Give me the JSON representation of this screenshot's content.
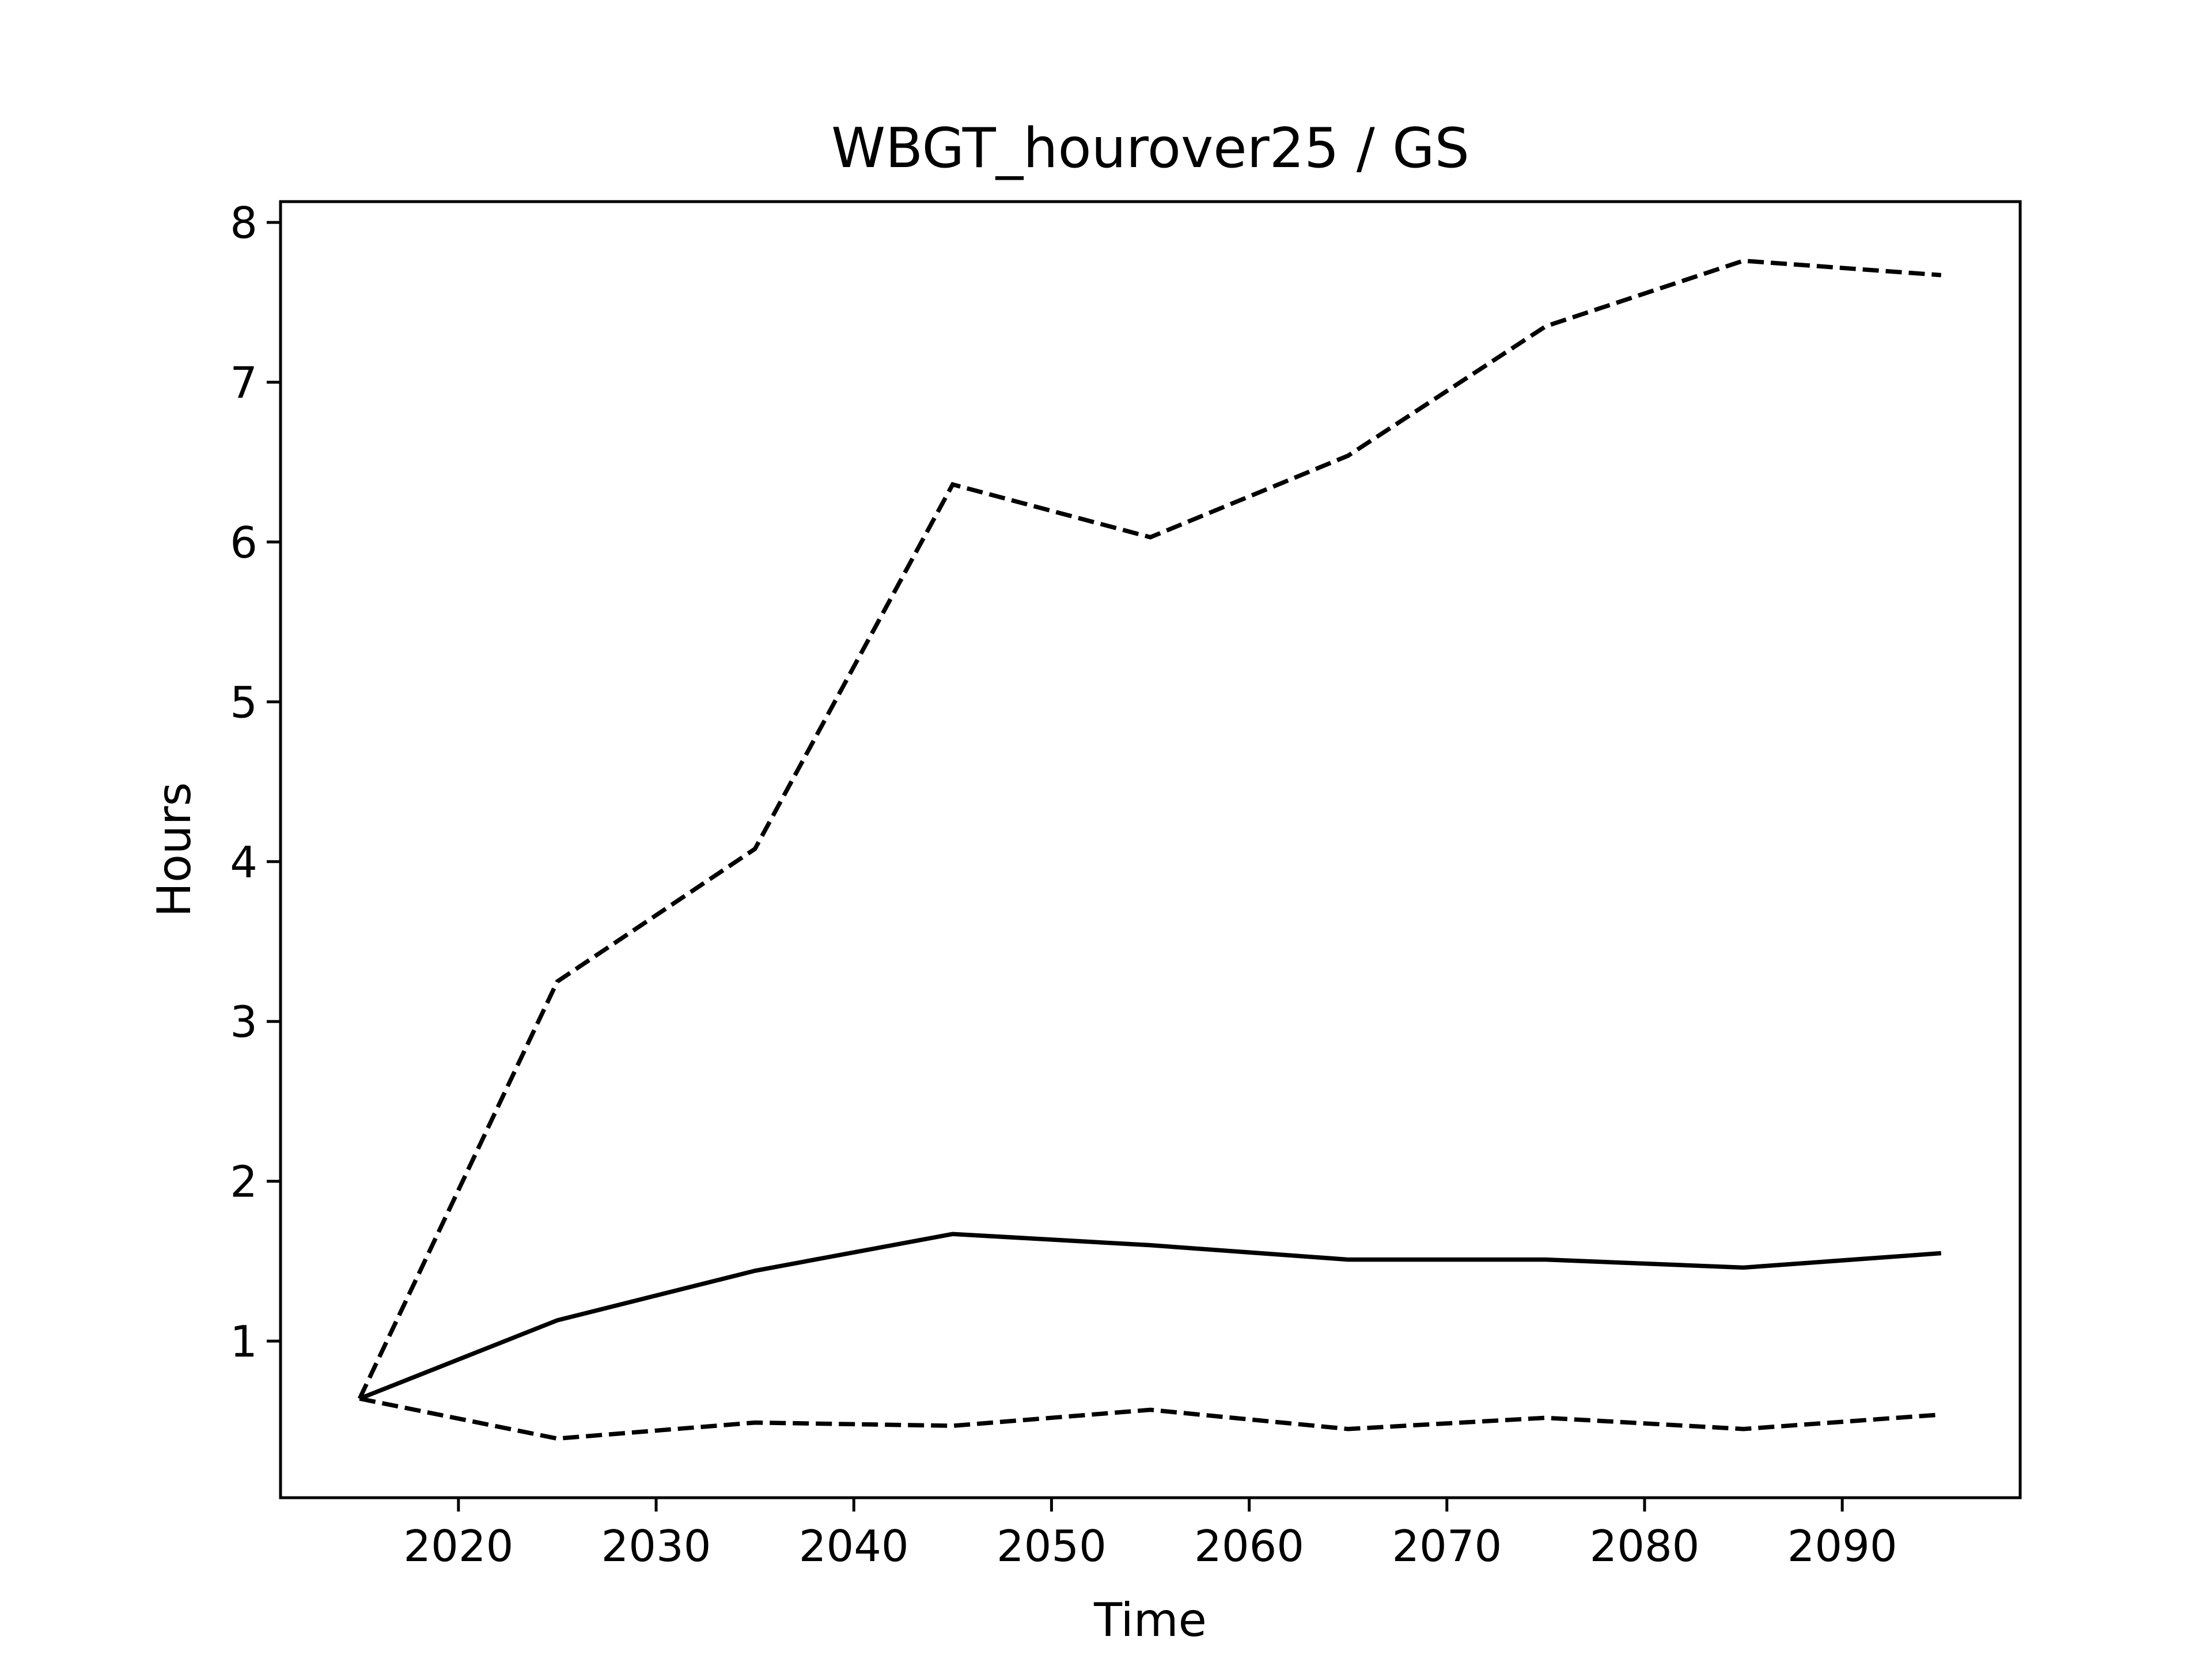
{
  "chart_data": {
    "type": "line",
    "title": "WBGT_hourover25 / GS",
    "x_label": "Time",
    "y_label": "Hours",
    "x": [
      2015,
      2025,
      2035,
      2045,
      2055,
      2065,
      2075,
      2085,
      2095
    ],
    "series": [
      {
        "color": "#000000",
        "linestyle": "solid",
        "values": [
          0.64,
          1.13,
          1.44,
          1.67,
          1.6,
          1.51,
          1.51,
          1.46,
          1.55
        ]
      },
      {
        "color": "#000000",
        "linestyle": "dashed",
        "values": [
          0.64,
          3.25,
          4.08,
          6.36,
          6.03,
          6.54,
          7.35,
          7.76,
          7.67
        ]
      },
      {
        "color": "#000000",
        "linestyle": "dashed",
        "values": [
          0.64,
          0.39,
          0.49,
          0.47,
          0.57,
          0.45,
          0.52,
          0.45,
          0.54
        ]
      }
    ],
    "xlim": [
      2011,
      2099
    ],
    "ylim": [
      0.02,
      8.13
    ],
    "xticks": [
      2020,
      2030,
      2040,
      2050,
      2060,
      2070,
      2080,
      2090
    ],
    "yticks": [
      1,
      2,
      3,
      4,
      5,
      6,
      7,
      8
    ],
    "grid": false
  }
}
